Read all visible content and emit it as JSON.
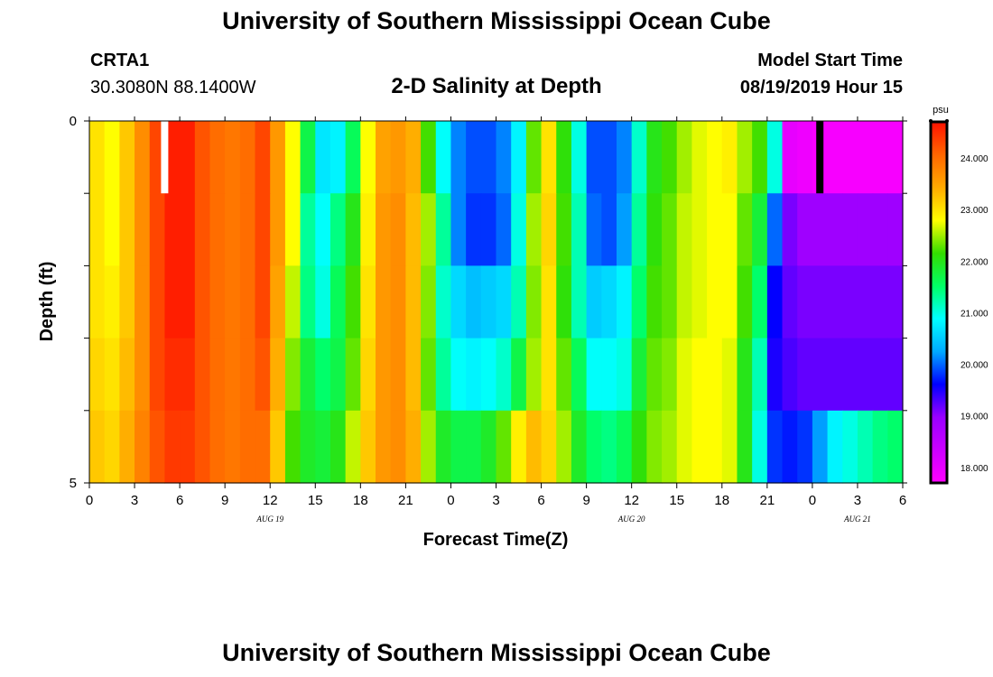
{
  "header": {
    "title": "University of Southern Mississippi Ocean Cube",
    "station_id": "CRTA1",
    "station_coords": "30.3080N 88.1400W",
    "subtitle": "2-D Salinity at Depth",
    "model_start_label": "Model Start Time",
    "model_start_value": "08/19/2019 Hour 15"
  },
  "footer": {
    "title": "University of Southern Mississippi Ocean Cube"
  },
  "colors": {
    "scale": [
      "#ff00ff",
      "#cc00ff",
      "#9900ff",
      "#0000ff",
      "#00aaff",
      "#00ffff",
      "#00ff66",
      "#33dd00",
      "#ffff00",
      "#ffaa00",
      "#ff6600",
      "#ff1100"
    ],
    "surface_marker_now": "#ffffff",
    "surface_marker_start": "#000000"
  },
  "chart_data": {
    "type": "heatmap",
    "title": "2-D Salinity at Depth",
    "xlabel": "Forecast Time(Z)",
    "ylabel": "Depth (ft)",
    "x_ticks": [
      "0",
      "3",
      "6",
      "9",
      "12",
      "15",
      "18",
      "21",
      "0",
      "3",
      "6",
      "9",
      "12",
      "15",
      "18",
      "21",
      "0",
      "3",
      "6"
    ],
    "date_labels": [
      {
        "label": "AUG 19",
        "hour": 12
      },
      {
        "label": "AUG 20",
        "hour": 36
      },
      {
        "label": "AUG 21",
        "hour": 51
      }
    ],
    "x_range_hours": [
      0,
      54
    ],
    "y_ticks": [
      "0",
      "5"
    ],
    "y_range_ft": [
      0,
      5
    ],
    "depth_levels": 5,
    "colorbar": {
      "unit": "psu",
      "range": [
        17.7,
        24.7
      ],
      "tick_values": [
        18.0,
        19.0,
        20.0,
        21.0,
        22.0,
        23.0,
        24.0
      ],
      "tick_labels": [
        "18.000",
        "19.000",
        "20.000",
        "21.000",
        "22.000",
        "23.000",
        "24.000"
      ]
    },
    "surface_markers": [
      {
        "hour": 5,
        "color": "white"
      },
      {
        "hour": 48.5,
        "color": "black"
      }
    ],
    "salinity_psu": {
      "description": "rows = depth bands from surface (0-1 ft) to bottom (4-5 ft); columns = forecast hours 0..53",
      "rows": [
        [
          23.0,
          22.8,
          23.2,
          23.7,
          24.3,
          24.6,
          24.6,
          24.2,
          24.0,
          23.9,
          24.0,
          24.3,
          23.6,
          22.8,
          21.7,
          20.7,
          20.8,
          21.6,
          22.8,
          23.5,
          23.6,
          23.4,
          22.2,
          20.9,
          20.1,
          19.9,
          19.9,
          20.1,
          20.8,
          22.3,
          23.0,
          22.1,
          21.0,
          19.9,
          19.9,
          20.1,
          21.1,
          22.0,
          22.2,
          22.5,
          22.7,
          22.8,
          22.9,
          22.5,
          22.2,
          21.0,
          18.0,
          17.9,
          17.8,
          17.8,
          17.8,
          17.8,
          17.8,
          17.8
        ],
        [
          23.0,
          22.8,
          23.2,
          23.7,
          24.3,
          24.6,
          24.6,
          24.2,
          24.0,
          23.9,
          24.0,
          24.3,
          23.6,
          22.8,
          21.3,
          20.9,
          21.4,
          22.0,
          22.9,
          23.6,
          23.7,
          23.3,
          22.5,
          21.3,
          20.1,
          19.8,
          19.8,
          20.0,
          21.0,
          22.5,
          23.1,
          22.2,
          21.2,
          20.0,
          19.9,
          20.2,
          21.3,
          22.1,
          22.3,
          22.6,
          22.7,
          22.8,
          22.8,
          22.3,
          21.8,
          20.0,
          19.1,
          18.9,
          18.9,
          18.9,
          18.9,
          18.9,
          18.9,
          18.9
        ],
        [
          23.0,
          22.9,
          23.2,
          23.7,
          24.3,
          24.6,
          24.6,
          24.2,
          24.0,
          23.9,
          24.0,
          24.3,
          23.5,
          22.6,
          21.4,
          21.0,
          21.6,
          22.2,
          23.0,
          23.6,
          23.7,
          23.3,
          22.4,
          21.1,
          20.6,
          20.4,
          20.5,
          20.6,
          21.2,
          22.4,
          23.0,
          22.1,
          21.2,
          20.5,
          20.6,
          20.8,
          21.5,
          22.2,
          22.3,
          22.6,
          22.7,
          22.8,
          22.8,
          22.2,
          21.5,
          19.6,
          19.2,
          19.1,
          19.1,
          19.1,
          19.1,
          19.1,
          19.1,
          19.1
        ],
        [
          23.1,
          23.0,
          23.3,
          23.7,
          24.3,
          24.5,
          24.5,
          24.2,
          24.0,
          23.9,
          24.0,
          24.2,
          23.4,
          22.4,
          21.8,
          21.5,
          21.7,
          22.3,
          23.1,
          23.6,
          23.7,
          23.3,
          22.3,
          21.3,
          20.9,
          20.8,
          20.9,
          21.1,
          21.7,
          22.5,
          23.0,
          22.3,
          21.6,
          20.9,
          20.9,
          21.0,
          21.8,
          22.3,
          22.4,
          22.7,
          22.8,
          22.8,
          22.7,
          22.0,
          21.2,
          19.5,
          19.3,
          19.2,
          19.2,
          19.2,
          19.2,
          19.2,
          19.2,
          19.2
        ],
        [
          23.2,
          23.1,
          23.4,
          23.8,
          24.2,
          24.4,
          24.4,
          24.2,
          24.0,
          23.9,
          24.0,
          24.0,
          23.2,
          22.2,
          21.9,
          21.8,
          22.0,
          22.6,
          23.2,
          23.6,
          23.7,
          23.4,
          22.5,
          21.9,
          21.7,
          21.7,
          21.9,
          22.3,
          22.9,
          23.3,
          23.1,
          22.5,
          21.9,
          21.5,
          21.4,
          21.6,
          22.1,
          22.4,
          22.5,
          22.7,
          22.8,
          22.8,
          22.7,
          22.0,
          21.0,
          19.8,
          19.7,
          19.8,
          20.2,
          20.8,
          21.0,
          21.2,
          21.4,
          21.5
        ]
      ]
    }
  }
}
